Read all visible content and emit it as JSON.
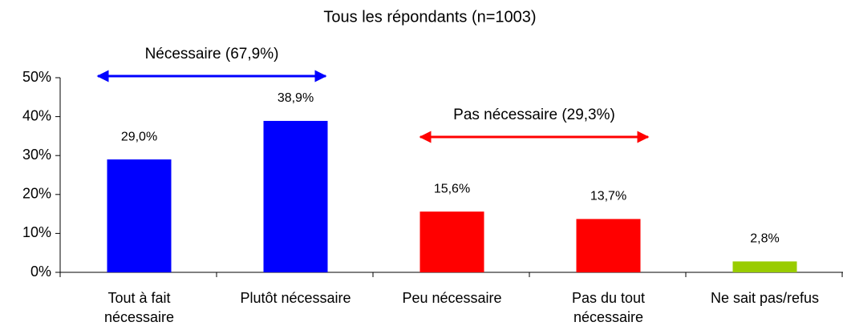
{
  "chart_data": {
    "type": "bar",
    "title": "Tous les répondants (n=1003)",
    "categories": [
      "Tout à fait\nnécessaire",
      "Plutôt nécessaire",
      "Peu nécessaire",
      "Pas du tout\nnécessaire",
      "Ne sait pas/refus"
    ],
    "values": [
      29.0,
      38.9,
      15.6,
      13.7,
      2.8
    ],
    "value_labels": [
      "29,0%",
      "38,9%",
      "15,6%",
      "13,7%",
      "2,8%"
    ],
    "colors": [
      "#0000ff",
      "#0000ff",
      "#ff0000",
      "#ff0000",
      "#99cc00"
    ],
    "ylim": [
      0,
      50
    ],
    "yticks": [
      {
        "value": 0,
        "label": "0%"
      },
      {
        "value": 10,
        "label": "10%"
      },
      {
        "value": 20,
        "label": "20%"
      },
      {
        "value": 30,
        "label": "30%"
      },
      {
        "value": 40,
        "label": "40%"
      },
      {
        "value": 50,
        "label": "50%"
      }
    ],
    "annotations": [
      {
        "text": "Nécessaire (67,9%)",
        "color": "#0000ff"
      },
      {
        "text": "Pas nécessaire (29,3%)",
        "color": "#ff0000"
      }
    ]
  }
}
